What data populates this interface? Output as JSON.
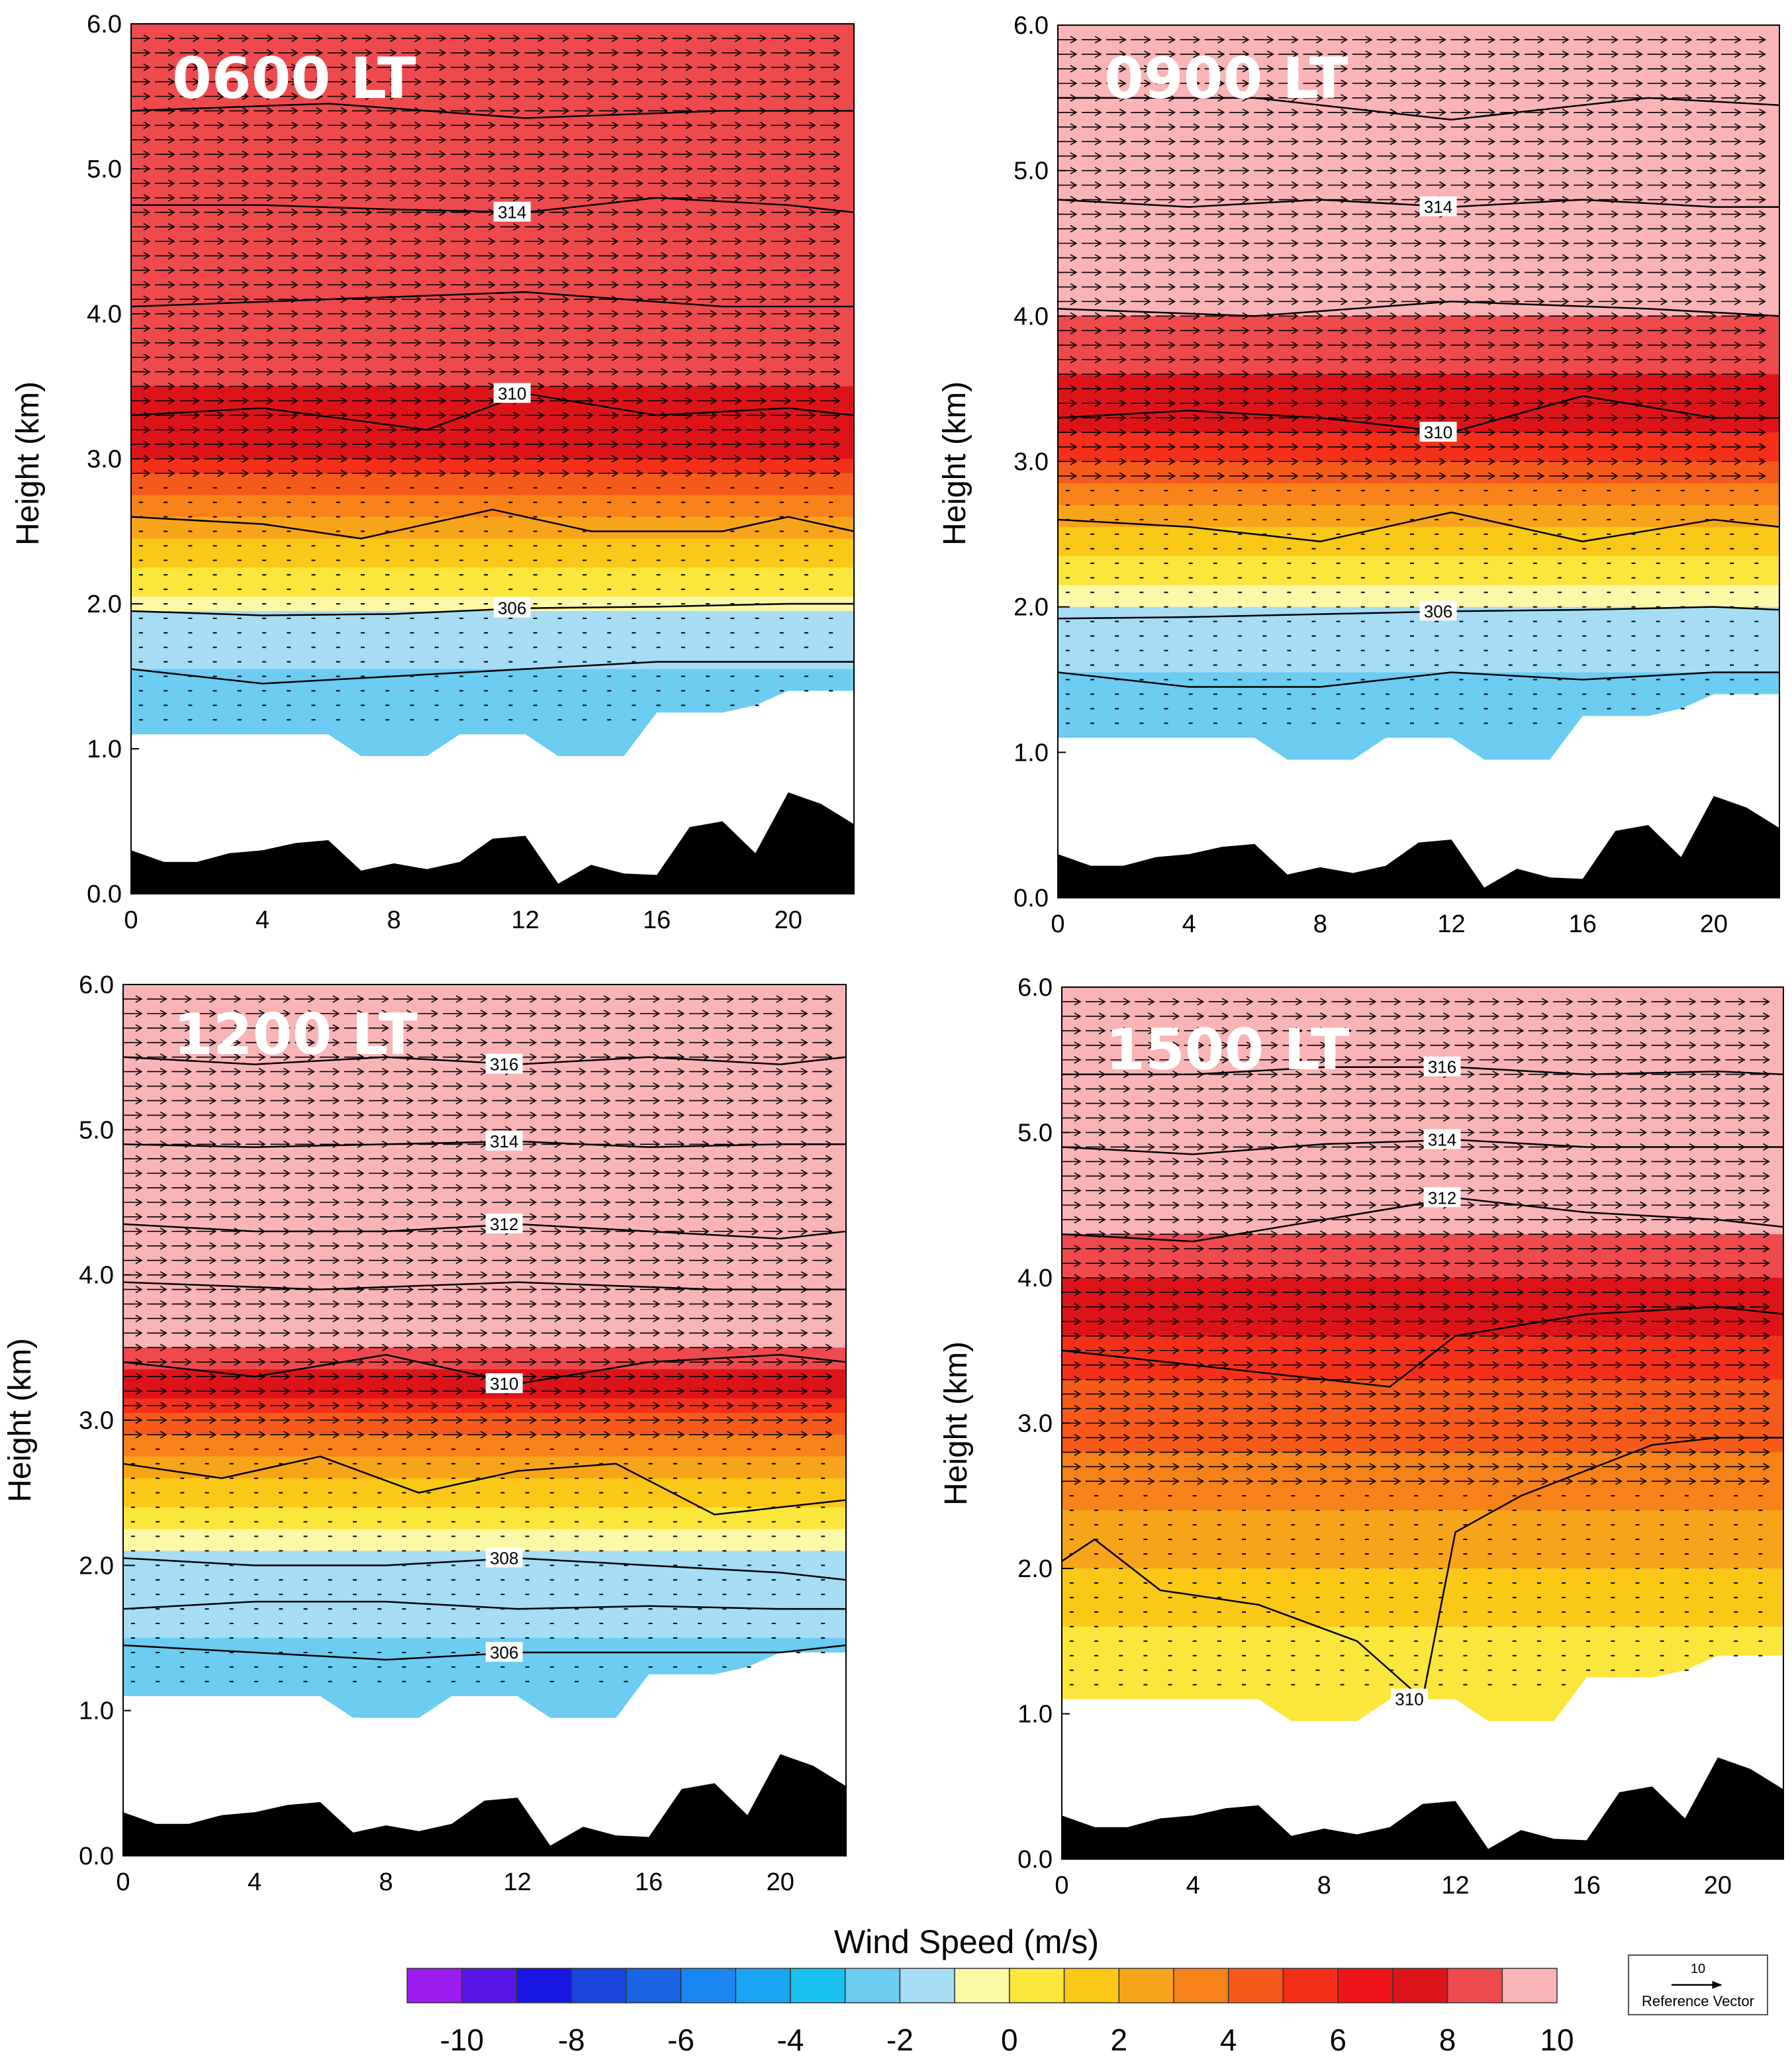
{
  "figure": {
    "colorbar_label": "Wind Speed  (m/s)",
    "colorbar_ticks": [
      "-10",
      "-8",
      "-6",
      "-4",
      "-2",
      "0",
      "2",
      "4",
      "6",
      "8",
      "10"
    ],
    "colorbar_colors": [
      "#9b1cf0",
      "#5a18e6",
      "#1a16e6",
      "#1846dc",
      "#1a64e6",
      "#1a86f2",
      "#1aa4f2",
      "#1ac2f2",
      "#6cccf2",
      "#a6dcf4",
      "#fbf8a6",
      "#fbe63c",
      "#fbc818",
      "#f8a41a",
      "#f8821a",
      "#f65a1a",
      "#f4301a",
      "#ee141a",
      "#dc141a",
      "#ee4a4e",
      "#fab4b6"
    ],
    "reference_vector": {
      "value": "10",
      "label": "Reference Vector"
    },
    "colors": {
      "terrain": "#000000",
      "contour": "#000000",
      "vector": "#000000"
    }
  },
  "chart_data": [
    {
      "type": "contour-vector",
      "title": "0600 LT",
      "ylabel": "Height (km)",
      "xlim": [
        0,
        22
      ],
      "ylim": [
        0,
        6
      ],
      "xticks": [
        "0",
        "4",
        "8",
        "12",
        "16",
        "20"
      ],
      "yticks": [
        "0.0",
        "1.0",
        "2.0",
        "3.0",
        "4.0",
        "5.0",
        "6.0"
      ],
      "bands": [
        {
          "top": 1.55,
          "color": "#6cccf2"
        },
        {
          "top": 1.95,
          "color": "#a6dcf4"
        },
        {
          "top": 2.05,
          "color": "#fbf8a6"
        },
        {
          "top": 2.25,
          "color": "#fbe63c"
        },
        {
          "top": 2.45,
          "color": "#fbc818"
        },
        {
          "top": 2.6,
          "color": "#f8a41a"
        },
        {
          "top": 2.75,
          "color": "#f8821a"
        },
        {
          "top": 2.9,
          "color": "#f65a1a"
        },
        {
          "top": 3.0,
          "color": "#f4301a"
        },
        {
          "top": 3.5,
          "color": "#dc141a"
        },
        {
          "top": 6.0,
          "color": "#ee4a4e"
        }
      ],
      "isentropes": [
        {
          "label": "",
          "x": [
            0,
            4,
            8,
            12,
            16,
            20,
            22
          ],
          "y": [
            1.55,
            1.45,
            1.5,
            1.55,
            1.6,
            1.6,
            1.6
          ]
        },
        {
          "label": "306",
          "x": [
            0,
            4,
            8,
            12,
            16,
            20,
            22
          ],
          "y": [
            1.95,
            1.92,
            1.93,
            1.97,
            1.98,
            2.0,
            2.0
          ]
        },
        {
          "label": "",
          "x": [
            0,
            4,
            7,
            11,
            14,
            18,
            20,
            22
          ],
          "y": [
            2.6,
            2.55,
            2.45,
            2.65,
            2.5,
            2.5,
            2.6,
            2.5
          ]
        },
        {
          "label": "310",
          "x": [
            0,
            4,
            9,
            12,
            16,
            20,
            22
          ],
          "y": [
            3.3,
            3.35,
            3.2,
            3.45,
            3.3,
            3.35,
            3.3
          ]
        },
        {
          "label": "",
          "x": [
            0,
            6,
            12,
            18,
            22
          ],
          "y": [
            4.05,
            4.1,
            4.15,
            4.05,
            4.05
          ]
        },
        {
          "label": "314",
          "x": [
            0,
            4,
            8,
            12,
            16,
            20,
            22
          ],
          "y": [
            4.75,
            4.75,
            4.72,
            4.7,
            4.8,
            4.75,
            4.7
          ]
        },
        {
          "label": "",
          "x": [
            0,
            6,
            12,
            18,
            22
          ],
          "y": [
            5.4,
            5.45,
            5.35,
            5.4,
            5.4
          ]
        }
      ]
    },
    {
      "type": "contour-vector",
      "title": "0900 LT",
      "ylabel": "Height (km)",
      "xlim": [
        0,
        22
      ],
      "ylim": [
        0,
        6
      ],
      "xticks": [
        "0",
        "4",
        "8",
        "12",
        "16",
        "20"
      ],
      "yticks": [
        "0.0",
        "1.0",
        "2.0",
        "3.0",
        "4.0",
        "5.0",
        "6.0"
      ],
      "bands": [
        {
          "top": 1.55,
          "color": "#6cccf2"
        },
        {
          "top": 2.0,
          "color": "#a6dcf4"
        },
        {
          "top": 2.15,
          "color": "#fbf8a6"
        },
        {
          "top": 2.35,
          "color": "#fbe63c"
        },
        {
          "top": 2.55,
          "color": "#fbc818"
        },
        {
          "top": 2.7,
          "color": "#f8a41a"
        },
        {
          "top": 2.85,
          "color": "#f8821a"
        },
        {
          "top": 3.0,
          "color": "#f65a1a"
        },
        {
          "top": 3.2,
          "color": "#f4301a"
        },
        {
          "top": 3.6,
          "color": "#dc141a"
        },
        {
          "top": 4.0,
          "color": "#ee4a4e"
        },
        {
          "top": 6.0,
          "color": "#fab4b6"
        }
      ],
      "isentropes": [
        {
          "label": "",
          "x": [
            0,
            4,
            8,
            12,
            16,
            20,
            22
          ],
          "y": [
            1.55,
            1.45,
            1.45,
            1.55,
            1.5,
            1.55,
            1.55
          ]
        },
        {
          "label": "306",
          "x": [
            0,
            4,
            8,
            12,
            16,
            20,
            22
          ],
          "y": [
            1.92,
            1.93,
            1.95,
            1.97,
            1.98,
            2.0,
            1.98
          ]
        },
        {
          "label": "",
          "x": [
            0,
            4,
            8,
            12,
            16,
            20,
            22
          ],
          "y": [
            2.6,
            2.55,
            2.45,
            2.65,
            2.45,
            2.6,
            2.55
          ]
        },
        {
          "label": "310",
          "x": [
            0,
            4,
            8,
            12,
            16,
            20,
            22
          ],
          "y": [
            3.3,
            3.35,
            3.3,
            3.2,
            3.45,
            3.3,
            3.3
          ]
        },
        {
          "label": "",
          "x": [
            0,
            6,
            12,
            18,
            22
          ],
          "y": [
            4.05,
            4.0,
            4.1,
            4.05,
            4.0
          ]
        },
        {
          "label": "314",
          "x": [
            0,
            4,
            8,
            12,
            16,
            20,
            22
          ],
          "y": [
            4.8,
            4.75,
            4.8,
            4.75,
            4.8,
            4.75,
            4.75
          ]
        },
        {
          "label": "",
          "x": [
            0,
            6,
            12,
            18,
            22
          ],
          "y": [
            5.5,
            5.5,
            5.35,
            5.5,
            5.45
          ]
        }
      ]
    },
    {
      "type": "contour-vector",
      "title": "1200 LT",
      "ylabel": "Height (km)",
      "xlim": [
        0,
        22
      ],
      "ylim": [
        0,
        6
      ],
      "xticks": [
        "0",
        "4",
        "8",
        "12",
        "16",
        "20"
      ],
      "yticks": [
        "0.0",
        "1.0",
        "2.0",
        "3.0",
        "4.0",
        "5.0",
        "6.0"
      ],
      "bands": [
        {
          "top": 1.5,
          "color": "#6cccf2"
        },
        {
          "top": 2.1,
          "color": "#a6dcf4"
        },
        {
          "top": 2.25,
          "color": "#fbf8a6"
        },
        {
          "top": 2.4,
          "color": "#fbe63c"
        },
        {
          "top": 2.6,
          "color": "#fbc818"
        },
        {
          "top": 2.75,
          "color": "#f8a41a"
        },
        {
          "top": 2.9,
          "color": "#f8821a"
        },
        {
          "top": 3.05,
          "color": "#f65a1a"
        },
        {
          "top": 3.15,
          "color": "#f4301a"
        },
        {
          "top": 3.35,
          "color": "#dc141a"
        },
        {
          "top": 3.5,
          "color": "#ee4a4e"
        },
        {
          "top": 6.0,
          "color": "#fab4b6"
        }
      ],
      "isentropes": [
        {
          "label": "306",
          "x": [
            0,
            4,
            8,
            12,
            16,
            20,
            22
          ],
          "y": [
            1.45,
            1.4,
            1.35,
            1.4,
            1.4,
            1.4,
            1.45
          ]
        },
        {
          "label": "",
          "x": [
            0,
            4,
            8,
            12,
            16,
            20,
            22
          ],
          "y": [
            1.7,
            1.75,
            1.75,
            1.7,
            1.72,
            1.7,
            1.7
          ]
        },
        {
          "label": "308",
          "x": [
            0,
            4,
            8,
            12,
            16,
            20,
            22
          ],
          "y": [
            2.05,
            2.0,
            2.0,
            2.05,
            2.0,
            1.95,
            1.9
          ]
        },
        {
          "label": "",
          "x": [
            0,
            3,
            6,
            9,
            12,
            15,
            18,
            22
          ],
          "y": [
            2.7,
            2.6,
            2.75,
            2.5,
            2.65,
            2.7,
            2.35,
            2.45
          ]
        },
        {
          "label": "310",
          "x": [
            0,
            4,
            8,
            12,
            16,
            20,
            22
          ],
          "y": [
            3.4,
            3.3,
            3.45,
            3.25,
            3.4,
            3.45,
            3.4
          ]
        },
        {
          "label": "",
          "x": [
            0,
            6,
            12,
            18,
            22
          ],
          "y": [
            3.95,
            3.9,
            3.95,
            3.9,
            3.9
          ]
        },
        {
          "label": "312",
          "x": [
            0,
            4,
            8,
            12,
            16,
            20,
            22
          ],
          "y": [
            4.35,
            4.3,
            4.3,
            4.35,
            4.3,
            4.25,
            4.3
          ]
        },
        {
          "label": "314",
          "x": [
            0,
            4,
            8,
            12,
            16,
            20,
            22
          ],
          "y": [
            4.9,
            4.88,
            4.9,
            4.92,
            4.88,
            4.9,
            4.9
          ]
        },
        {
          "label": "316",
          "x": [
            0,
            4,
            8,
            12,
            16,
            20,
            22
          ],
          "y": [
            5.5,
            5.45,
            5.5,
            5.45,
            5.5,
            5.45,
            5.5
          ]
        }
      ]
    },
    {
      "type": "contour-vector",
      "title": "1500 LT",
      "ylabel": "Height (km)",
      "xlim": [
        0,
        22
      ],
      "ylim": [
        0,
        6
      ],
      "xticks": [
        "0",
        "4",
        "8",
        "12",
        "16",
        "20"
      ],
      "yticks": [
        "0.0",
        "1.0",
        "2.0",
        "3.0",
        "4.0",
        "5.0",
        "6.0"
      ],
      "bands": [
        {
          "top": 1.6,
          "color": "#fbe63c"
        },
        {
          "top": 2.0,
          "color": "#fbc818"
        },
        {
          "top": 2.4,
          "color": "#f8a41a"
        },
        {
          "top": 2.8,
          "color": "#f8821a"
        },
        {
          "top": 3.3,
          "color": "#f65a1a"
        },
        {
          "top": 3.6,
          "color": "#f4301a"
        },
        {
          "top": 4.0,
          "color": "#dc141a"
        },
        {
          "top": 4.3,
          "color": "#ee4a4e"
        },
        {
          "top": 6.0,
          "color": "#fab4b6"
        }
      ],
      "isentropes": [
        {
          "label": "310",
          "x": [
            0,
            1,
            3,
            6,
            9,
            11,
            12,
            14,
            18,
            20,
            22
          ],
          "y": [
            2.05,
            2.2,
            1.85,
            1.75,
            1.5,
            1.1,
            2.25,
            2.5,
            2.85,
            2.9,
            2.9
          ]
        },
        {
          "label": "",
          "x": [
            0,
            4,
            8,
            10,
            12,
            16,
            20,
            22
          ],
          "y": [
            3.5,
            3.4,
            3.3,
            3.25,
            3.6,
            3.75,
            3.8,
            3.75
          ]
        },
        {
          "label": "312",
          "x": [
            0,
            4,
            8,
            12,
            16,
            20,
            22
          ],
          "y": [
            4.3,
            4.25,
            4.4,
            4.55,
            4.45,
            4.4,
            4.35
          ]
        },
        {
          "label": "314",
          "x": [
            0,
            4,
            8,
            12,
            16,
            20,
            22
          ],
          "y": [
            4.9,
            4.85,
            4.92,
            4.95,
            4.9,
            4.9,
            4.9
          ]
        },
        {
          "label": "316",
          "x": [
            0,
            4,
            8,
            12,
            16,
            20,
            22
          ],
          "y": [
            5.4,
            5.4,
            5.45,
            5.45,
            5.4,
            5.42,
            5.4
          ]
        }
      ]
    }
  ]
}
